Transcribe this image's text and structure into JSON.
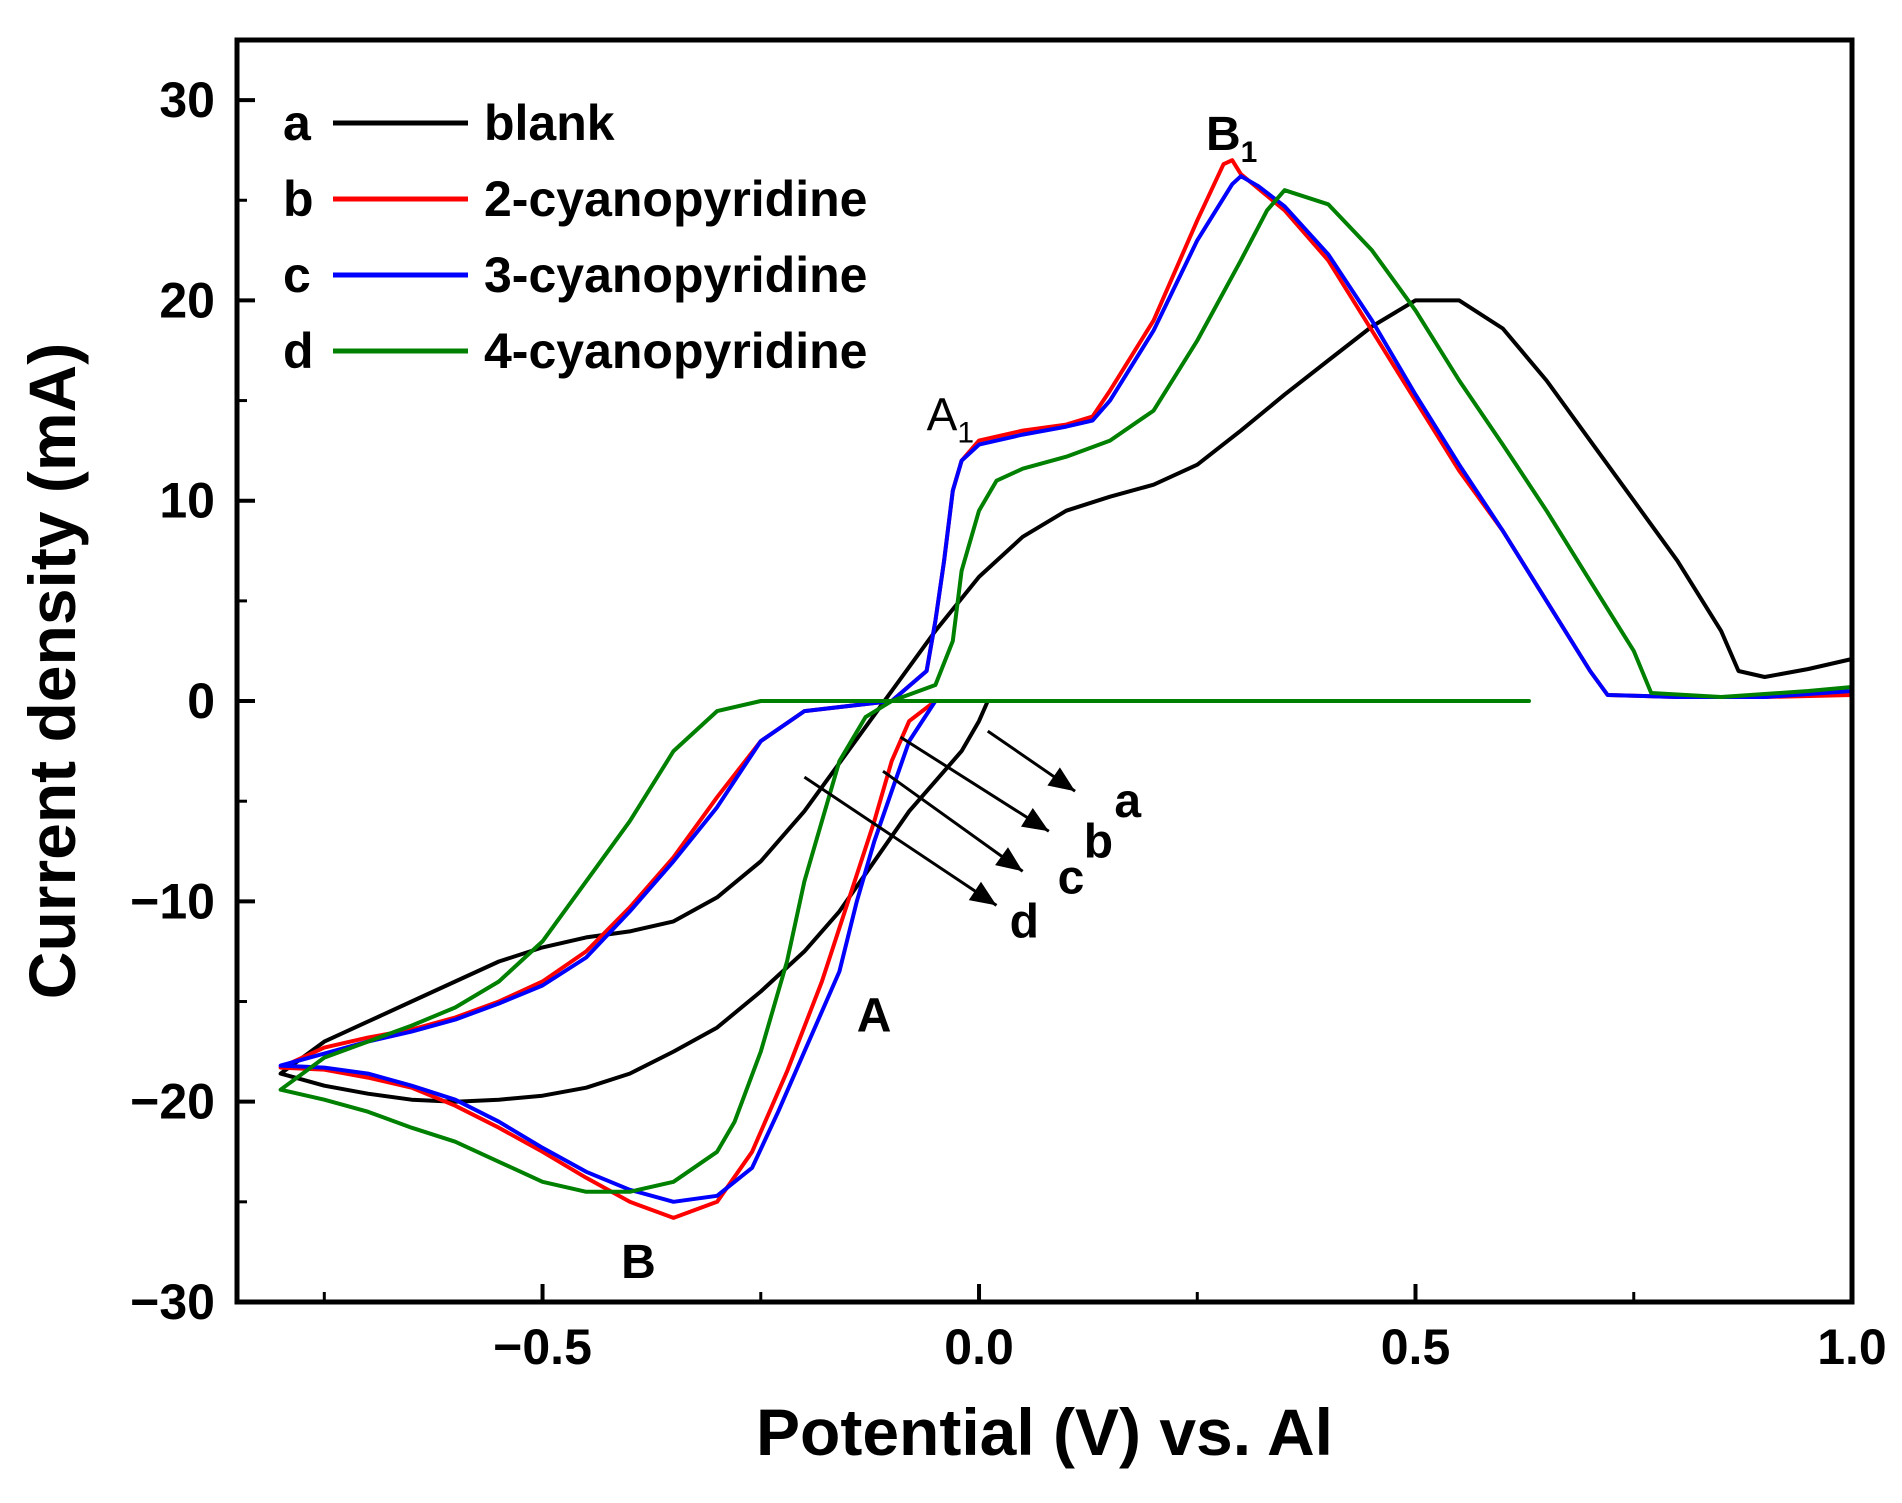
{
  "chart_data": {
    "type": "line",
    "title": "",
    "xlabel": "Potential (V) vs. Al",
    "ylabel": "Current density (mA)",
    "xlim": [
      -0.85,
      1.0
    ],
    "ylim": [
      -30,
      33
    ],
    "x_ticks": [
      -0.5,
      0.0,
      0.5,
      1.0
    ],
    "x_tick_labels": [
      "−0.5",
      "0.0",
      "0.5",
      "1.0"
    ],
    "y_ticks": [
      -30,
      -20,
      -10,
      0,
      10,
      20,
      30
    ],
    "y_tick_labels": [
      "−30",
      "−20",
      "−10",
      "0",
      "10",
      "20",
      "30"
    ],
    "grid": false,
    "legend_position": "top-left",
    "series": [
      {
        "letter": "a",
        "name": "blank",
        "color": "#000000",
        "points": [
          [
            0.01,
            0.0
          ],
          [
            0.0,
            -1.0
          ],
          [
            -0.02,
            -2.5
          ],
          [
            -0.05,
            -4.0
          ],
          [
            -0.08,
            -5.5
          ],
          [
            -0.12,
            -8.0
          ],
          [
            -0.16,
            -10.5
          ],
          [
            -0.2,
            -12.5
          ],
          [
            -0.25,
            -14.5
          ],
          [
            -0.3,
            -16.3
          ],
          [
            -0.35,
            -17.5
          ],
          [
            -0.4,
            -18.6
          ],
          [
            -0.45,
            -19.3
          ],
          [
            -0.5,
            -19.7
          ],
          [
            -0.55,
            -19.9
          ],
          [
            -0.6,
            -20.0
          ],
          [
            -0.65,
            -19.9
          ],
          [
            -0.7,
            -19.6
          ],
          [
            -0.75,
            -19.2
          ],
          [
            -0.8,
            -18.6
          ],
          [
            -0.75,
            -17.0
          ],
          [
            -0.7,
            -16.0
          ],
          [
            -0.65,
            -15.0
          ],
          [
            -0.6,
            -14.0
          ],
          [
            -0.55,
            -13.0
          ],
          [
            -0.5,
            -12.3
          ],
          [
            -0.45,
            -11.8
          ],
          [
            -0.4,
            -11.5
          ],
          [
            -0.35,
            -11.0
          ],
          [
            -0.3,
            -9.8
          ],
          [
            -0.25,
            -8.0
          ],
          [
            -0.2,
            -5.5
          ],
          [
            -0.15,
            -2.5
          ],
          [
            -0.1,
            0.5
          ],
          [
            -0.05,
            3.5
          ],
          [
            0.0,
            6.2
          ],
          [
            0.05,
            8.2
          ],
          [
            0.1,
            9.5
          ],
          [
            0.15,
            10.2
          ],
          [
            0.2,
            10.8
          ],
          [
            0.25,
            11.8
          ],
          [
            0.3,
            13.5
          ],
          [
            0.35,
            15.3
          ],
          [
            0.4,
            17.0
          ],
          [
            0.45,
            18.7
          ],
          [
            0.5,
            20.0
          ],
          [
            0.55,
            20.0
          ],
          [
            0.6,
            18.6
          ],
          [
            0.65,
            16.0
          ],
          [
            0.7,
            13.0
          ],
          [
            0.75,
            10.0
          ],
          [
            0.8,
            7.0
          ],
          [
            0.85,
            3.5
          ],
          [
            0.87,
            1.5
          ],
          [
            0.9,
            1.2
          ],
          [
            0.95,
            1.6
          ],
          [
            1.0,
            2.1
          ]
        ]
      },
      {
        "letter": "b",
        "name": "2-cyanopyridine",
        "color": "#ff0000",
        "points": [
          [
            0.13,
            0.0
          ],
          [
            -0.05,
            0.0
          ],
          [
            -0.08,
            -1.0
          ],
          [
            -0.1,
            -3.0
          ],
          [
            -0.12,
            -6.0
          ],
          [
            -0.15,
            -10.0
          ],
          [
            -0.18,
            -14.0
          ],
          [
            -0.22,
            -18.5
          ],
          [
            -0.26,
            -22.5
          ],
          [
            -0.3,
            -25.0
          ],
          [
            -0.35,
            -25.8
          ],
          [
            -0.4,
            -25.0
          ],
          [
            -0.45,
            -23.8
          ],
          [
            -0.5,
            -22.5
          ],
          [
            -0.55,
            -21.3
          ],
          [
            -0.6,
            -20.2
          ],
          [
            -0.65,
            -19.3
          ],
          [
            -0.7,
            -18.8
          ],
          [
            -0.75,
            -18.4
          ],
          [
            -0.8,
            -18.3
          ],
          [
            -0.75,
            -17.3
          ],
          [
            -0.7,
            -16.8
          ],
          [
            -0.65,
            -16.4
          ],
          [
            -0.6,
            -15.8
          ],
          [
            -0.55,
            -15.0
          ],
          [
            -0.5,
            -14.0
          ],
          [
            -0.45,
            -12.5
          ],
          [
            -0.4,
            -10.3
          ],
          [
            -0.35,
            -7.8
          ],
          [
            -0.3,
            -4.8
          ],
          [
            -0.25,
            -2.0
          ],
          [
            -0.2,
            -0.5
          ],
          [
            -0.1,
            0.0
          ],
          [
            -0.06,
            1.5
          ],
          [
            -0.05,
            4.0
          ],
          [
            -0.04,
            7.0
          ],
          [
            -0.03,
            10.5
          ],
          [
            -0.02,
            12.0
          ],
          [
            0.0,
            13.0
          ],
          [
            0.05,
            13.5
          ],
          [
            0.1,
            13.8
          ],
          [
            0.13,
            14.2
          ],
          [
            0.15,
            15.5
          ],
          [
            0.2,
            19.0
          ],
          [
            0.25,
            24.0
          ],
          [
            0.28,
            26.8
          ],
          [
            0.29,
            27.0
          ],
          [
            0.3,
            26.3
          ],
          [
            0.35,
            24.5
          ],
          [
            0.4,
            22.0
          ],
          [
            0.45,
            18.5
          ],
          [
            0.5,
            15.0
          ],
          [
            0.55,
            11.5
          ],
          [
            0.6,
            8.5
          ],
          [
            0.65,
            5.0
          ],
          [
            0.7,
            1.5
          ],
          [
            0.72,
            0.3
          ],
          [
            0.8,
            0.2
          ],
          [
            0.9,
            0.2
          ],
          [
            1.0,
            0.3
          ]
        ]
      },
      {
        "letter": "c",
        "name": "3-cyanopyridine",
        "color": "#0000ff",
        "points": [
          [
            0.13,
            0.0
          ],
          [
            -0.05,
            0.0
          ],
          [
            -0.08,
            -2.0
          ],
          [
            -0.1,
            -4.5
          ],
          [
            -0.12,
            -7.0
          ],
          [
            -0.14,
            -10.0
          ],
          [
            -0.16,
            -13.5
          ],
          [
            -0.2,
            -17.5
          ],
          [
            -0.23,
            -20.5
          ],
          [
            -0.26,
            -23.3
          ],
          [
            -0.3,
            -24.7
          ],
          [
            -0.35,
            -25.0
          ],
          [
            -0.4,
            -24.4
          ],
          [
            -0.45,
            -23.5
          ],
          [
            -0.5,
            -22.3
          ],
          [
            -0.55,
            -21.0
          ],
          [
            -0.6,
            -19.9
          ],
          [
            -0.65,
            -19.2
          ],
          [
            -0.7,
            -18.6
          ],
          [
            -0.75,
            -18.3
          ],
          [
            -0.8,
            -18.2
          ],
          [
            -0.75,
            -17.6
          ],
          [
            -0.7,
            -17.0
          ],
          [
            -0.65,
            -16.5
          ],
          [
            -0.6,
            -15.9
          ],
          [
            -0.55,
            -15.1
          ],
          [
            -0.5,
            -14.2
          ],
          [
            -0.45,
            -12.8
          ],
          [
            -0.4,
            -10.5
          ],
          [
            -0.35,
            -8.0
          ],
          [
            -0.3,
            -5.3
          ],
          [
            -0.25,
            -2.0
          ],
          [
            -0.2,
            -0.5
          ],
          [
            -0.1,
            0.0
          ],
          [
            -0.06,
            1.5
          ],
          [
            -0.05,
            4.0
          ],
          [
            -0.04,
            7.0
          ],
          [
            -0.03,
            10.5
          ],
          [
            -0.02,
            12.0
          ],
          [
            0.0,
            12.8
          ],
          [
            0.05,
            13.3
          ],
          [
            0.1,
            13.7
          ],
          [
            0.13,
            14.0
          ],
          [
            0.15,
            15.0
          ],
          [
            0.2,
            18.5
          ],
          [
            0.25,
            23.0
          ],
          [
            0.29,
            25.8
          ],
          [
            0.3,
            26.2
          ],
          [
            0.32,
            25.7
          ],
          [
            0.35,
            24.7
          ],
          [
            0.4,
            22.3
          ],
          [
            0.45,
            19.0
          ],
          [
            0.5,
            15.3
          ],
          [
            0.55,
            11.8
          ],
          [
            0.6,
            8.5
          ],
          [
            0.65,
            5.0
          ],
          [
            0.7,
            1.5
          ],
          [
            0.72,
            0.3
          ],
          [
            0.8,
            0.2
          ],
          [
            0.9,
            0.2
          ],
          [
            1.0,
            0.5
          ]
        ]
      },
      {
        "letter": "d",
        "name": "4-cyanopyridine",
        "color": "#008000",
        "points": [
          [
            0.63,
            0.0
          ],
          [
            0.0,
            0.0
          ],
          [
            -0.1,
            0.0
          ],
          [
            -0.13,
            -0.8
          ],
          [
            -0.16,
            -3.0
          ],
          [
            -0.18,
            -6.0
          ],
          [
            -0.2,
            -9.0
          ],
          [
            -0.22,
            -13.0
          ],
          [
            -0.25,
            -17.5
          ],
          [
            -0.28,
            -21.0
          ],
          [
            -0.3,
            -22.5
          ],
          [
            -0.35,
            -24.0
          ],
          [
            -0.4,
            -24.5
          ],
          [
            -0.45,
            -24.5
          ],
          [
            -0.5,
            -24.0
          ],
          [
            -0.55,
            -23.0
          ],
          [
            -0.6,
            -22.0
          ],
          [
            -0.65,
            -21.3
          ],
          [
            -0.7,
            -20.5
          ],
          [
            -0.75,
            -19.9
          ],
          [
            -0.8,
            -19.4
          ],
          [
            -0.75,
            -17.8
          ],
          [
            -0.7,
            -17.0
          ],
          [
            -0.65,
            -16.2
          ],
          [
            -0.6,
            -15.3
          ],
          [
            -0.55,
            -14.0
          ],
          [
            -0.5,
            -12.0
          ],
          [
            -0.45,
            -9.0
          ],
          [
            -0.4,
            -6.0
          ],
          [
            -0.35,
            -2.5
          ],
          [
            -0.3,
            -0.5
          ],
          [
            -0.25,
            0.0
          ],
          [
            -0.1,
            0.0
          ],
          [
            -0.05,
            0.8
          ],
          [
            -0.03,
            3.0
          ],
          [
            -0.02,
            6.5
          ],
          [
            0.0,
            9.5
          ],
          [
            0.02,
            11.0
          ],
          [
            0.05,
            11.6
          ],
          [
            0.1,
            12.2
          ],
          [
            0.15,
            13.0
          ],
          [
            0.2,
            14.5
          ],
          [
            0.25,
            18.0
          ],
          [
            0.3,
            22.0
          ],
          [
            0.33,
            24.5
          ],
          [
            0.35,
            25.5
          ],
          [
            0.4,
            24.8
          ],
          [
            0.45,
            22.5
          ],
          [
            0.5,
            19.5
          ],
          [
            0.55,
            16.0
          ],
          [
            0.6,
            12.8
          ],
          [
            0.65,
            9.5
          ],
          [
            0.7,
            6.0
          ],
          [
            0.75,
            2.5
          ],
          [
            0.77,
            0.4
          ],
          [
            0.85,
            0.2
          ],
          [
            0.95,
            0.5
          ],
          [
            1.0,
            0.7
          ]
        ]
      }
    ],
    "annotations": [
      {
        "main": "A",
        "sub": "1",
        "x": -0.06,
        "y": 13.5,
        "style": "plain"
      },
      {
        "main": "B",
        "sub": "1",
        "x": 0.26,
        "y": 27.5,
        "style": "bold"
      },
      {
        "main": "A",
        "sub": "",
        "x": -0.14,
        "y": -16.5,
        "style": "bold"
      },
      {
        "main": "B",
        "sub": "",
        "x": -0.41,
        "y": -28.8,
        "style": "bold"
      }
    ],
    "arrows": [
      {
        "label": "a",
        "from": [
          0.01,
          -1.5
        ],
        "to": [
          0.11,
          -4.5
        ],
        "label_pos": [
          0.155,
          -5.8
        ]
      },
      {
        "label": "b",
        "from": [
          -0.09,
          -1.8
        ],
        "to": [
          0.08,
          -6.5
        ],
        "label_pos": [
          0.12,
          -7.8
        ]
      },
      {
        "label": "c",
        "from": [
          -0.11,
          -3.5
        ],
        "to": [
          0.05,
          -8.5
        ],
        "label_pos": [
          0.09,
          -9.6
        ]
      },
      {
        "label": "d",
        "from": [
          -0.2,
          -3.8
        ],
        "to": [
          0.02,
          -10.2
        ],
        "label_pos": [
          0.035,
          -11.8
        ]
      }
    ]
  }
}
